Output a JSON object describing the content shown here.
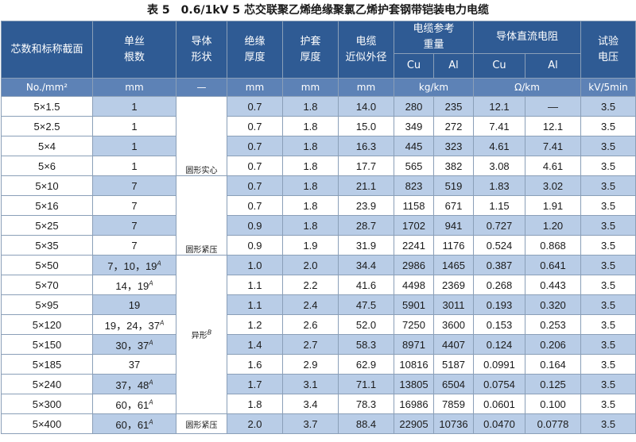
{
  "title": "表 5　0.6/1kV 5 芯交联聚乙烯绝缘聚氯乙烯护套钢带铠装电力电缆",
  "header": {
    "c0": "芯数和标称截面",
    "c1": [
      "单丝",
      "根数"
    ],
    "c2": [
      "导体",
      "形状"
    ],
    "c3": [
      "绝缘",
      "厚度"
    ],
    "c4": [
      "护套",
      "厚度"
    ],
    "c5": [
      "电缆",
      "近似外径"
    ],
    "weight": [
      "电缆参考",
      "重量"
    ],
    "resistance": "导体直流电阻",
    "test": [
      "试验",
      "电压"
    ],
    "sub": [
      "Cu",
      "Al",
      "Cu",
      "Al"
    ],
    "units": [
      "No./mm²",
      "mm",
      "—",
      "mm",
      "mm",
      "mm",
      "kg/km",
      "Ω/km",
      "kV/5min"
    ]
  },
  "shapes": {
    "solid": "圆形实心",
    "compact1": "圆形紧压",
    "shaped": "异形",
    "shaped_note": "B",
    "compact2": "圆形紧压"
  },
  "rows": [
    {
      "size": "5×1.5",
      "wires": "1",
      "note": "",
      "ins": "0.7",
      "sheath": "1.8",
      "od": "14.0",
      "wcu": "280",
      "wal": "235",
      "rcu": "12.1",
      "ral": "—",
      "test": "3.5"
    },
    {
      "size": "5×2.5",
      "wires": "1",
      "note": "",
      "ins": "0.7",
      "sheath": "1.8",
      "od": "15.0",
      "wcu": "349",
      "wal": "272",
      "rcu": "7.41",
      "ral": "12.1",
      "test": "3.5"
    },
    {
      "size": "5×4",
      "wires": "1",
      "note": "",
      "ins": "0.7",
      "sheath": "1.8",
      "od": "16.3",
      "wcu": "445",
      "wal": "323",
      "rcu": "4.61",
      "ral": "7.41",
      "test": "3.5"
    },
    {
      "size": "5×6",
      "wires": "1",
      "note": "",
      "ins": "0.7",
      "sheath": "1.8",
      "od": "17.7",
      "wcu": "565",
      "wal": "382",
      "rcu": "3.08",
      "ral": "4.61",
      "test": "3.5"
    },
    {
      "size": "5×10",
      "wires": "7",
      "note": "",
      "ins": "0.7",
      "sheath": "1.8",
      "od": "21.1",
      "wcu": "823",
      "wal": "519",
      "rcu": "1.83",
      "ral": "3.02",
      "test": "3.5"
    },
    {
      "size": "5×16",
      "wires": "7",
      "note": "",
      "ins": "0.7",
      "sheath": "1.8",
      "od": "23.9",
      "wcu": "1158",
      "wal": "671",
      "rcu": "1.15",
      "ral": "1.91",
      "test": "3.5"
    },
    {
      "size": "5×25",
      "wires": "7",
      "note": "",
      "ins": "0.9",
      "sheath": "1.8",
      "od": "28.7",
      "wcu": "1702",
      "wal": "941",
      "rcu": "0.727",
      "ral": "1.20",
      "test": "3.5"
    },
    {
      "size": "5×35",
      "wires": "7",
      "note": "",
      "ins": "0.9",
      "sheath": "1.9",
      "od": "31.9",
      "wcu": "2241",
      "wal": "1176",
      "rcu": "0.524",
      "ral": "0.868",
      "test": "3.5"
    },
    {
      "size": "5×50",
      "wires": "7，10，19",
      "note": "A",
      "ins": "1.0",
      "sheath": "2.0",
      "od": "34.4",
      "wcu": "2986",
      "wal": "1465",
      "rcu": "0.387",
      "ral": "0.641",
      "test": "3.5"
    },
    {
      "size": "5×70",
      "wires": "14，19",
      "note": "A",
      "ins": "1.1",
      "sheath": "2.2",
      "od": "41.6",
      "wcu": "4498",
      "wal": "2369",
      "rcu": "0.268",
      "ral": "0.443",
      "test": "3.5"
    },
    {
      "size": "5×95",
      "wires": "19",
      "note": "",
      "ins": "1.1",
      "sheath": "2.4",
      "od": "47.5",
      "wcu": "5901",
      "wal": "3011",
      "rcu": "0.193",
      "ral": "0.320",
      "test": "3.5"
    },
    {
      "size": "5×120",
      "wires": "19，24，37",
      "note": "A",
      "ins": "1.2",
      "sheath": "2.6",
      "od": "52.0",
      "wcu": "7250",
      "wal": "3600",
      "rcu": "0.153",
      "ral": "0.253",
      "test": "3.5"
    },
    {
      "size": "5×150",
      "wires": "30，37",
      "note": "A",
      "ins": "1.4",
      "sheath": "2.7",
      "od": "58.3",
      "wcu": "8971",
      "wal": "4407",
      "rcu": "0.124",
      "ral": "0.206",
      "test": "3.5"
    },
    {
      "size": "5×185",
      "wires": "37",
      "note": "",
      "ins": "1.6",
      "sheath": "2.9",
      "od": "62.9",
      "wcu": "10816",
      "wal": "5187",
      "rcu": "0.0991",
      "ral": "0.164",
      "test": "3.5"
    },
    {
      "size": "5×240",
      "wires": "37，48",
      "note": "A",
      "ins": "1.7",
      "sheath": "3.1",
      "od": "71.1",
      "wcu": "13805",
      "wal": "6504",
      "rcu": "0.0754",
      "ral": "0.125",
      "test": "3.5"
    },
    {
      "size": "5×300",
      "wires": "60，61",
      "note": "A",
      "ins": "1.8",
      "sheath": "3.4",
      "od": "78.3",
      "wcu": "16986",
      "wal": "7859",
      "rcu": "0.0601",
      "ral": "0.100",
      "test": "3.5"
    },
    {
      "size": "5×400",
      "wires": "60，61",
      "note": "A",
      "ins": "2.0",
      "sheath": "3.7",
      "od": "88.4",
      "wcu": "22905",
      "wal": "10736",
      "rcu": "0.0470",
      "ral": "0.0778",
      "test": "3.5"
    }
  ]
}
